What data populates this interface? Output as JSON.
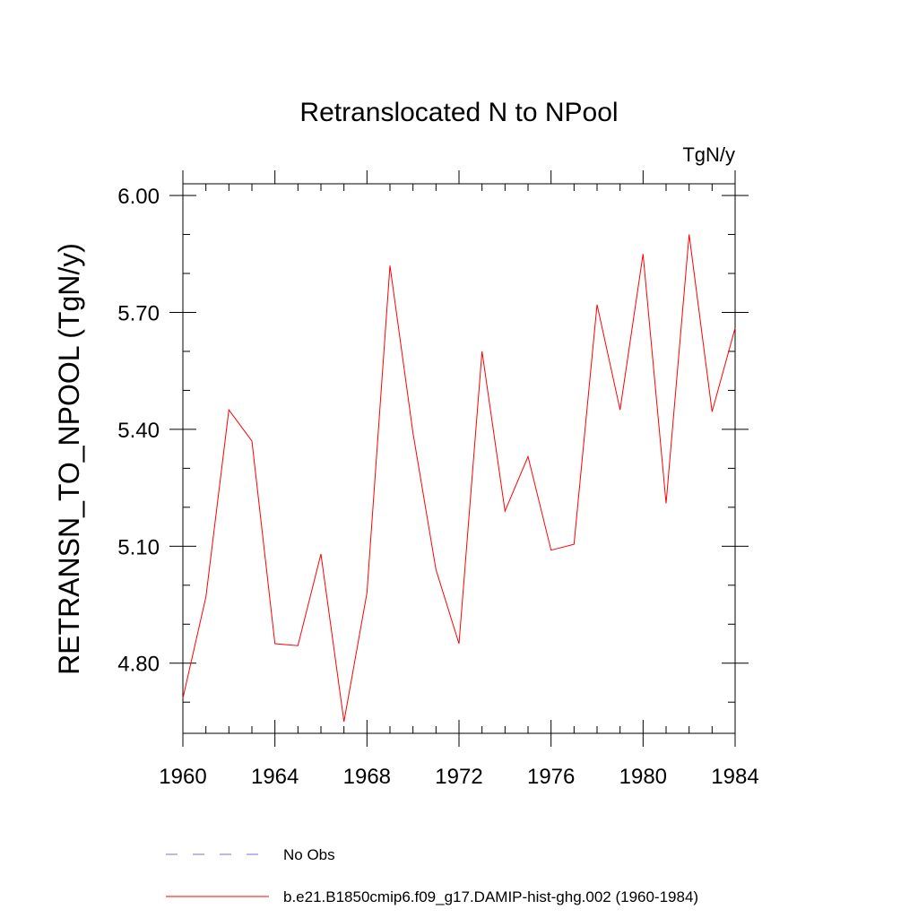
{
  "chart_data": {
    "type": "line",
    "title": "Retranslocated N to NPool",
    "units": "TgN/y",
    "ylabel": "RETRANSN_TO_NPOOL  (TgN/y)",
    "xlabel": "",
    "xlim": [
      1960,
      1984
    ],
    "ylim": [
      4.62,
      6.03
    ],
    "x_ticks": [
      1960,
      1964,
      1968,
      1972,
      1976,
      1980,
      1984
    ],
    "y_ticks": [
      "4.80",
      "5.10",
      "5.40",
      "5.70",
      "6.00"
    ],
    "grid": false,
    "legend_position": "bottom",
    "series": [
      {
        "name": "b.e21.B1850cmip6.f09_g17.DAMIP-hist-ghg.002 (1960-1984)",
        "color": "#ff0000",
        "style": "solid",
        "x": [
          1960,
          1961,
          1962,
          1963,
          1964,
          1965,
          1966,
          1967,
          1968,
          1969,
          1970,
          1971,
          1972,
          1973,
          1974,
          1975,
          1976,
          1977,
          1978,
          1979,
          1980,
          1981,
          1982,
          1983,
          1984
        ],
        "y": [
          4.71,
          4.97,
          5.45,
          5.37,
          4.85,
          4.845,
          5.08,
          4.65,
          4.98,
          5.82,
          5.39,
          5.04,
          4.85,
          5.6,
          5.19,
          5.33,
          5.09,
          5.105,
          5.72,
          5.45,
          5.85,
          5.21,
          5.9,
          5.445,
          5.66
        ]
      }
    ],
    "legend": [
      {
        "label": "No Obs",
        "color": "#7a6fd0",
        "style": "dashed"
      },
      {
        "label": "b.e21.B1850cmip6.f09_g17.DAMIP-hist-ghg.002 (1960-1984)",
        "color": "#ff0000",
        "style": "solid"
      }
    ]
  }
}
